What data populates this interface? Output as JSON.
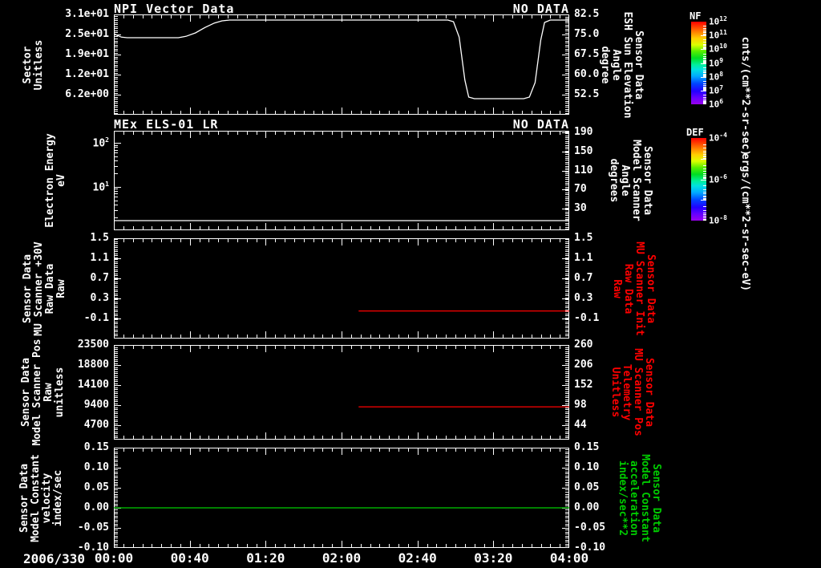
{
  "colorbars": [
    {
      "name": "NF",
      "units": "cnts/(cm**2-sr-sec)",
      "scale": "log",
      "num_decades": 6,
      "tick_labels": [
        "10^12",
        "10^11",
        "10^10",
        "10^9",
        "10^8",
        "10^7",
        "10^6"
      ]
    },
    {
      "name": "DEF",
      "units": "ergs/(cm**2-sr-sec-eV)",
      "scale": "log",
      "num_decades": 4,
      "tick_labels": [
        "10^-4",
        "10^-6",
        "10^-8"
      ]
    }
  ],
  "chart_data": {
    "type": "multi-panel-line",
    "x_axis": {
      "date_label": "2006/330",
      "range_minutes": [
        0,
        240
      ],
      "major_step_minutes": 40,
      "minor_step_minutes": 5,
      "ticks": [
        {
          "minutes": 0,
          "label": "00:00"
        },
        {
          "minutes": 40,
          "label": "00:40"
        },
        {
          "minutes": 80,
          "label": "01:20"
        },
        {
          "minutes": 120,
          "label": "02:00"
        },
        {
          "minutes": 160,
          "label": "02:40"
        },
        {
          "minutes": 200,
          "label": "03:20"
        },
        {
          "minutes": 240,
          "label": "04:00"
        }
      ]
    },
    "panels": [
      {
        "title": "NPI Vector Data",
        "annotation": "NO DATA",
        "left_axis": {
          "scale": "linear",
          "range": [
            0,
            31
          ],
          "color": "#ffffff",
          "title_lines": [
            "Sector",
            "Unitless"
          ],
          "ticks": [
            {
              "v": 31,
              "label": "3.1e+01"
            },
            {
              "v": 24.8,
              "label": "2.5e+01"
            },
            {
              "v": 18.6,
              "label": "1.9e+01"
            },
            {
              "v": 12.4,
              "label": "1.2e+01"
            },
            {
              "v": 6.2,
              "label": "6.2e+00"
            }
          ]
        },
        "right_axis": {
          "scale": "linear",
          "range": [
            45,
            82.5
          ],
          "color": "#ffffff",
          "title_lines": [
            "Sensor Data",
            "ESH Sun Elevation",
            "Angle",
            "degree"
          ],
          "ticks": [
            {
              "v": 82.5,
              "label": "82.5"
            },
            {
              "v": 75,
              "label": "75.0"
            },
            {
              "v": 67.5,
              "label": "67.5"
            },
            {
              "v": 60,
              "label": "60.0"
            },
            {
              "v": 52.5,
              "label": "52.5"
            }
          ]
        },
        "series": [
          {
            "name": "ESH Sun Elevation Angle",
            "axis": "right",
            "color": "#ffffff",
            "points": [
              [
                0,
                75.3
              ],
              [
                2,
                74.6
              ],
              [
                4,
                74.0
              ],
              [
                7,
                73.8
              ],
              [
                34,
                73.8
              ],
              [
                38,
                74.3
              ],
              [
                43,
                75.6
              ],
              [
                48,
                77.6
              ],
              [
                53,
                79.3
              ],
              [
                57,
                80.1
              ],
              [
                61,
                80.4
              ],
              [
                176,
                80.4
              ],
              [
                179,
                79.8
              ],
              [
                182,
                74.0
              ],
              [
                185,
                58.0
              ],
              [
                187,
                51.6
              ],
              [
                190,
                51.0
              ],
              [
                216,
                51.0
              ],
              [
                219,
                51.6
              ],
              [
                222,
                57.0
              ],
              [
                225,
                73.0
              ],
              [
                227,
                79.5
              ],
              [
                230,
                80.4
              ],
              [
                240,
                80.4
              ]
            ]
          }
        ]
      },
      {
        "title": "MEx ELS-01 LR",
        "annotation": "NO DATA",
        "left_axis": {
          "scale": "log",
          "range": [
            1.04,
            187.5
          ],
          "color": "#ffffff",
          "title_lines": [
            "Electron Energy",
            "eV"
          ],
          "ticks": [
            {
              "v": 100,
              "label": "10^2"
            },
            {
              "v": 10,
              "label": "10^1"
            }
          ]
        },
        "right_axis": {
          "scale": "linear",
          "range": [
            -15.5,
            193.5
          ],
          "color": "#ffffff",
          "title_lines": [
            "Sensor Data",
            "Model Scanner",
            "Angle",
            "degrees"
          ],
          "ticks": [
            {
              "v": 190,
              "label": "190"
            },
            {
              "v": 150,
              "label": "150"
            },
            {
              "v": 110,
              "label": "110"
            },
            {
              "v": 70,
              "label": "70"
            },
            {
              "v": 30,
              "label": "30"
            }
          ]
        },
        "series": [
          {
            "name": "Electron Energy",
            "axis": "left",
            "color": "#ffffff",
            "points": [
              [
                0,
                1.72
              ],
              [
                240,
                1.72
              ]
            ]
          }
        ]
      },
      {
        "left_axis": {
          "scale": "linear",
          "range": [
            -0.5,
            1.5
          ],
          "color": "#ffffff",
          "title_lines": [
            "Sensor Data",
            "MU Scanner +30V",
            "Raw Data",
            "Raw"
          ],
          "ticks": [
            {
              "v": 1.5,
              "label": "1.5"
            },
            {
              "v": 1.1,
              "label": "1.1"
            },
            {
              "v": 0.7,
              "label": "0.7"
            },
            {
              "v": 0.3,
              "label": "0.3"
            },
            {
              "v": -0.1,
              "label": "-0.1"
            }
          ]
        },
        "right_axis": {
          "scale": "linear",
          "range": [
            -0.5,
            1.5
          ],
          "color": "#ff0000",
          "title_lines": [
            "Sensor Data",
            "MU Scanner Init",
            "Raw Data",
            "Raw"
          ],
          "ticks": [
            {
              "v": 1.5,
              "label": "1.5"
            },
            {
              "v": 1.1,
              "label": "1.1"
            },
            {
              "v": 0.7,
              "label": "0.7"
            },
            {
              "v": 0.3,
              "label": "0.3"
            },
            {
              "v": -0.1,
              "label": "-0.1"
            }
          ]
        },
        "series": [
          {
            "name": "MU Scanner Init Raw",
            "axis": "left",
            "color": "#ff0000",
            "points": [
              [
                129,
                0.05
              ],
              [
                240,
                0.05
              ]
            ]
          }
        ]
      },
      {
        "left_axis": {
          "scale": "linear",
          "range": [
            1316,
            23500
          ],
          "color": "#ffffff",
          "title_lines": [
            "Sensor Data",
            "Model Scanner Pos",
            "Raw",
            "unitless"
          ],
          "ticks": [
            {
              "v": 23500,
              "label": "23500"
            },
            {
              "v": 18800,
              "label": "18800"
            },
            {
              "v": 14100,
              "label": "14100"
            },
            {
              "v": 9400,
              "label": "9400"
            },
            {
              "v": 4700,
              "label": "4700"
            }
          ]
        },
        "right_axis": {
          "scale": "linear",
          "range": [
            5,
            260
          ],
          "color": "#ff0000",
          "title_lines": [
            "Sensor Data",
            "MU Scanner Pos",
            "Telemetry",
            "Unitless"
          ],
          "ticks": [
            {
              "v": 260,
              "label": "260"
            },
            {
              "v": 206,
              "label": "206"
            },
            {
              "v": 152,
              "label": "152"
            },
            {
              "v": 98,
              "label": "98"
            },
            {
              "v": 44,
              "label": "44"
            }
          ]
        },
        "series": [
          {
            "name": "MU Scanner Pos Telemetry",
            "axis": "left",
            "color": "#ff0000",
            "points": [
              [
                129,
                9000
              ],
              [
                240,
                9000
              ]
            ]
          }
        ]
      },
      {
        "left_axis": {
          "scale": "linear",
          "range": [
            -0.1,
            0.15
          ],
          "color": "#ffffff",
          "title_lines": [
            "Sensor Data",
            "Model Constant",
            "velocity",
            "index/sec"
          ],
          "ticks": [
            {
              "v": 0.15,
              "label": "0.15"
            },
            {
              "v": 0.1,
              "label": "0.10"
            },
            {
              "v": 0.05,
              "label": "0.05"
            },
            {
              "v": 0,
              "label": "0.00"
            },
            {
              "v": -0.05,
              "label": "-0.05"
            },
            {
              "v": -0.1,
              "label": "-0.10"
            }
          ]
        },
        "right_axis": {
          "scale": "linear",
          "range": [
            -0.1,
            0.15
          ],
          "color": "#00cc00",
          "title_lines": [
            "Sensor Data",
            "Model Constant",
            "acceleration",
            "index/sec**2"
          ],
          "ticks": [
            {
              "v": 0.15,
              "label": "0.15"
            },
            {
              "v": 0.1,
              "label": "0.10"
            },
            {
              "v": 0.05,
              "label": "0.05"
            },
            {
              "v": 0,
              "label": "0.00"
            },
            {
              "v": -0.05,
              "label": "-0.05"
            },
            {
              "v": -0.1,
              "label": "-0.10"
            }
          ]
        },
        "series": [
          {
            "name": "Model Constant velocity",
            "axis": "left",
            "color": "#00cc00",
            "points": [
              [
                0,
                0
              ],
              [
                240,
                0
              ]
            ]
          }
        ]
      }
    ]
  }
}
